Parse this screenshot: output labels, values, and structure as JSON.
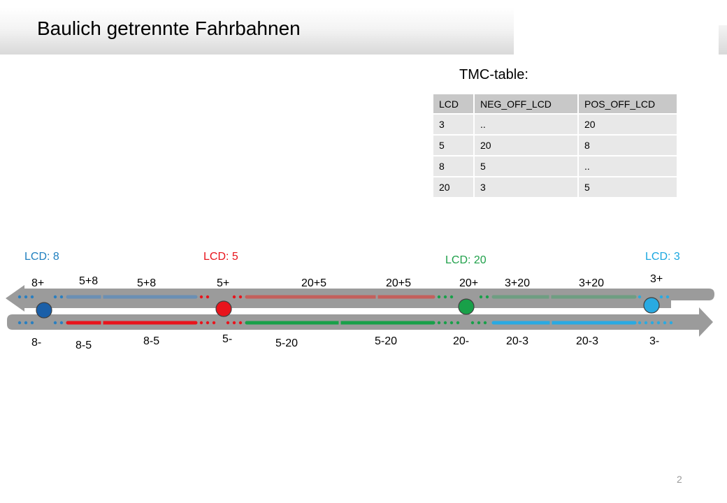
{
  "slide": {
    "title": "Baulich getrennte Fahrbahnen",
    "page_number": "2"
  },
  "table": {
    "caption": "TMC-table:",
    "headers": [
      "LCD",
      "NEG_OFF_LCD",
      "POS_OFF_LCD"
    ],
    "rows": [
      [
        "3",
        "..",
        "20"
      ],
      [
        "5",
        "20",
        "8"
      ],
      [
        "8",
        "5",
        ".."
      ],
      [
        "20",
        "3",
        "5"
      ]
    ]
  },
  "diagram": {
    "location_labels": [
      {
        "text": "LCD: 8",
        "color": "#1f7fbf"
      },
      {
        "text": "LCD: 5",
        "color": "#e8141c"
      },
      {
        "text": "LCD: 20",
        "color": "#1fa04a"
      },
      {
        "text": "LCD: 3",
        "color": "#1aa7e0"
      }
    ],
    "nodes": [
      {
        "lcd": "8",
        "color": "#1a5fa8"
      },
      {
        "lcd": "5",
        "color": "#e8141c"
      },
      {
        "lcd": "20",
        "color": "#18a049"
      },
      {
        "lcd": "3",
        "color": "#29aae2"
      }
    ],
    "top_labels": [
      "8+",
      "5+8",
      "5+8",
      "5+",
      "20+5",
      "20+5",
      "20+",
      "3+20",
      "3+20",
      "3+"
    ],
    "bottom_labels": [
      "8-",
      "8-5",
      "8-5",
      "5-",
      "5-20",
      "5-20",
      "20-",
      "20-3",
      "20-3",
      "3-"
    ],
    "top_segment_colors": [
      "#6a8fb4",
      "#c4605c",
      "#6e9e82"
    ],
    "bottom_segment_colors": [
      "#e8141c",
      "#18a049",
      "#29aae2"
    ]
  }
}
